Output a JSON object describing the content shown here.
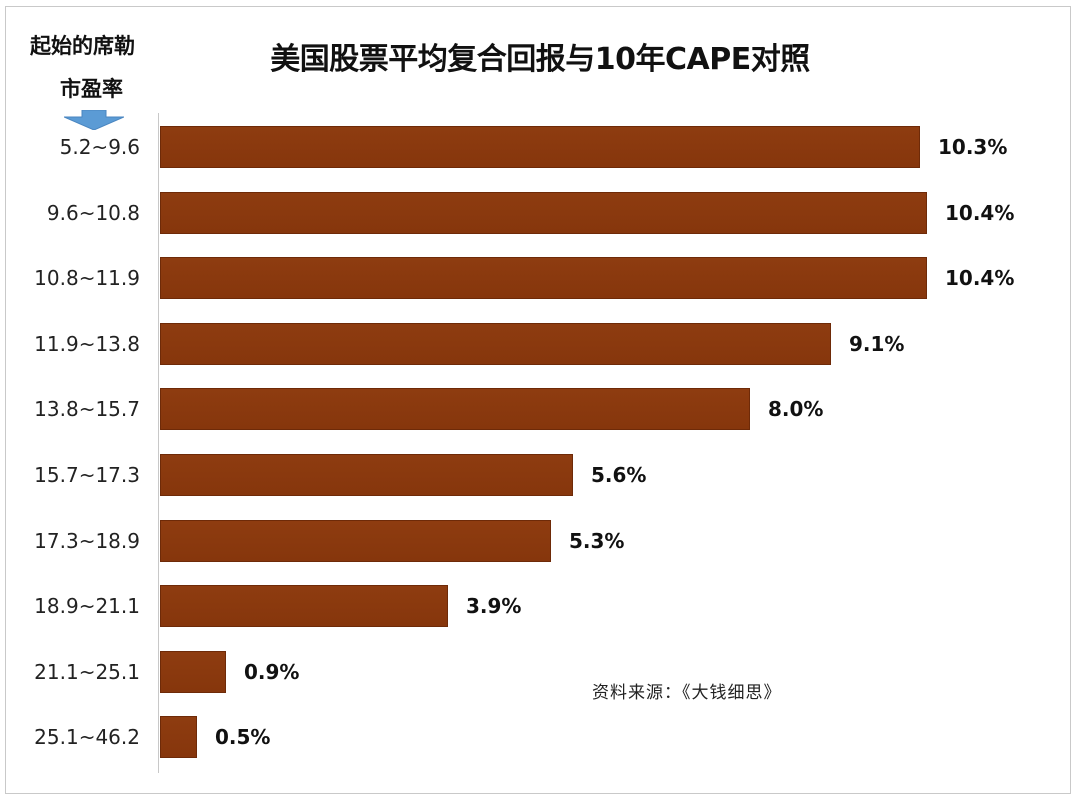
{
  "chart": {
    "title": "美国股票平均复合回报与10年CAPE对照",
    "ylabel_line1": "起始的席勒",
    "ylabel_line2": "市盈率",
    "source": "资料来源：《大钱细思》",
    "bar_color": "#8b3a0e",
    "arrow_color": "#5b9bd5",
    "rows": [
      {
        "category": "5.2~9.6",
        "value": 10.3,
        "label": "10.3%"
      },
      {
        "category": "9.6~10.8",
        "value": 10.4,
        "label": "10.4%"
      },
      {
        "category": "10.8~11.9",
        "value": 10.4,
        "label": "10.4%"
      },
      {
        "category": "11.9~13.8",
        "value": 9.1,
        "label": "9.1%"
      },
      {
        "category": "13.8~15.7",
        "value": 8.0,
        "label": "8.0%"
      },
      {
        "category": "15.7~17.3",
        "value": 5.6,
        "label": "5.6%"
      },
      {
        "category": "17.3~18.9",
        "value": 5.3,
        "label": "5.3%"
      },
      {
        "category": "18.9~21.1",
        "value": 3.9,
        "label": "3.9%"
      },
      {
        "category": "21.1~25.1",
        "value": 0.9,
        "label": "0.9%"
      },
      {
        "category": "25.1~46.2",
        "value": 0.5,
        "label": "0.5%"
      }
    ]
  },
  "chart_data": {
    "type": "bar",
    "orientation": "horizontal",
    "title": "美国股票平均复合回报与10年CAPE对照",
    "xlabel": "",
    "ylabel": "起始的席勒市盈率",
    "categories": [
      "5.2~9.6",
      "9.6~10.8",
      "10.8~11.9",
      "11.9~13.8",
      "13.8~15.7",
      "15.7~17.3",
      "17.3~18.9",
      "18.9~21.1",
      "21.1~25.1",
      "25.1~46.2"
    ],
    "values": [
      10.3,
      10.4,
      10.4,
      9.1,
      8.0,
      5.6,
      5.3,
      3.9,
      0.9,
      0.5
    ],
    "value_unit": "%",
    "data_labels": [
      "10.3%",
      "10.4%",
      "10.4%",
      "9.1%",
      "8.0%",
      "5.6%",
      "5.3%",
      "3.9%",
      "0.9%",
      "0.5%"
    ],
    "xlim": [
      0,
      10.4
    ],
    "grid": false,
    "legend": null,
    "annotations": [
      "资料来源：《大钱细思》"
    ]
  }
}
